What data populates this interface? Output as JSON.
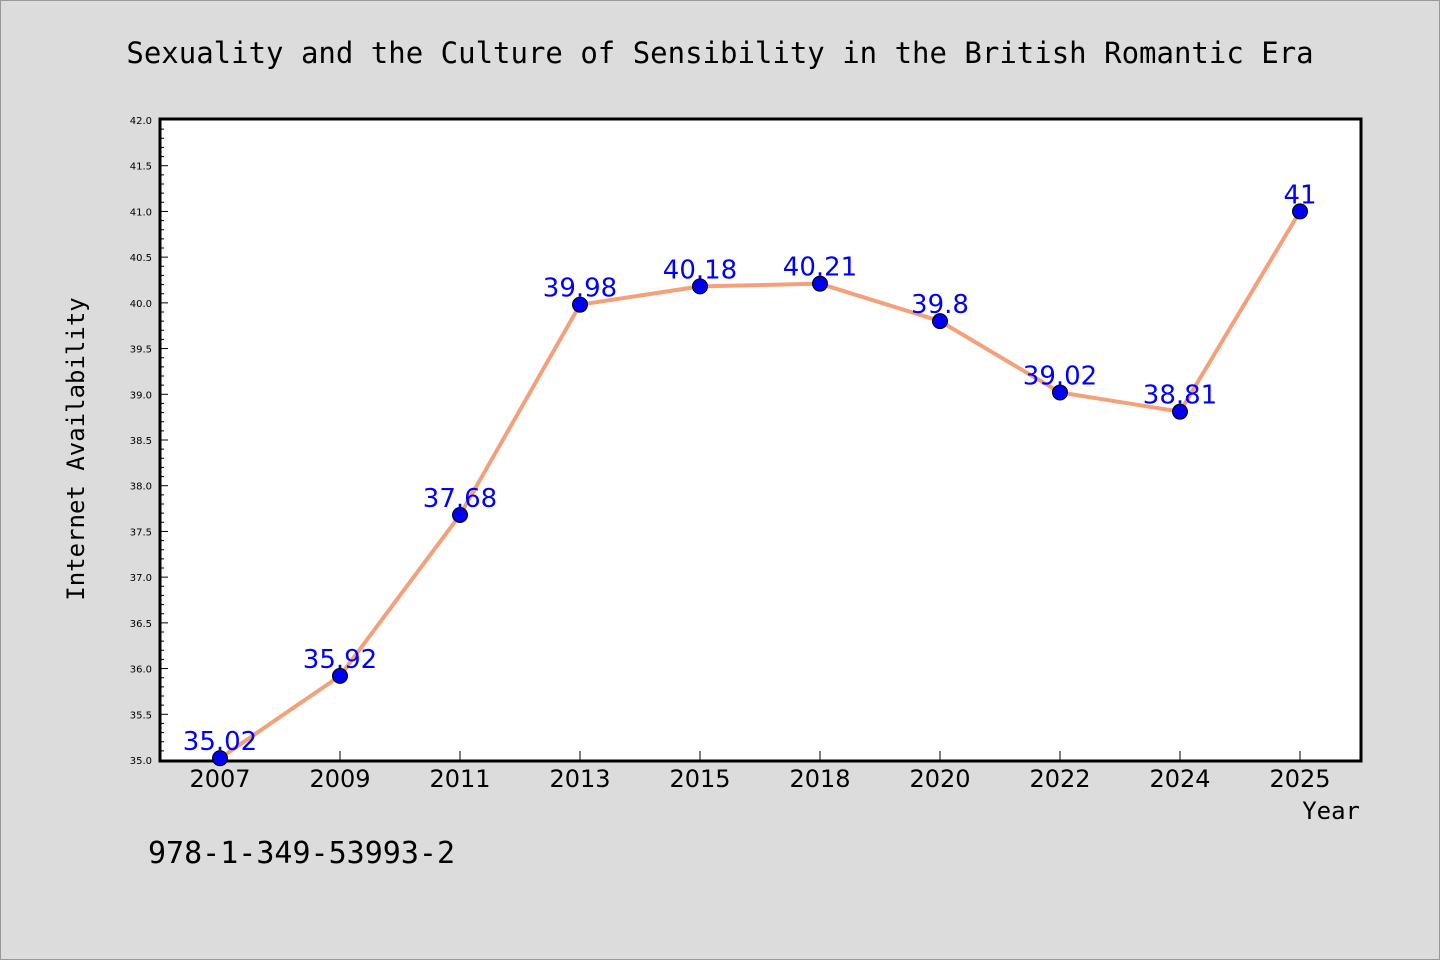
{
  "chart_data": {
    "type": "line",
    "title": "Sexuality and the Culture of Sensibility in the British Romantic Era",
    "xlabel": "Year",
    "ylabel": "Internet Availability",
    "categories": [
      "2007",
      "2009",
      "2011",
      "2013",
      "2015",
      "2018",
      "2020",
      "2022",
      "2024",
      "2025"
    ],
    "series": [
      {
        "values": [
          35.02,
          35.92,
          37.68,
          39.98,
          40.18,
          40.21,
          39.8,
          39.02,
          38.81,
          41
        ],
        "data_labels": [
          "35.02",
          "35.92",
          "37.68",
          "39.98",
          "40.18",
          "40.21",
          "39.8",
          "39.02",
          "38.81",
          "41"
        ],
        "line_color": "#f4a07a",
        "marker_color": "#0000ee"
      }
    ],
    "ylim": [
      35.0,
      42.0
    ],
    "yticks": [
      "35.0",
      "35.5",
      "36.0",
      "36.5",
      "37.0",
      "37.5",
      "38.0",
      "38.5",
      "39.0",
      "39.5",
      "40.0",
      "40.5",
      "41.0",
      "41.5",
      "42.0"
    ],
    "grid": false,
    "legend": "none",
    "label_color": "#0000ff"
  },
  "annotation": "978-1-349-53993-2"
}
